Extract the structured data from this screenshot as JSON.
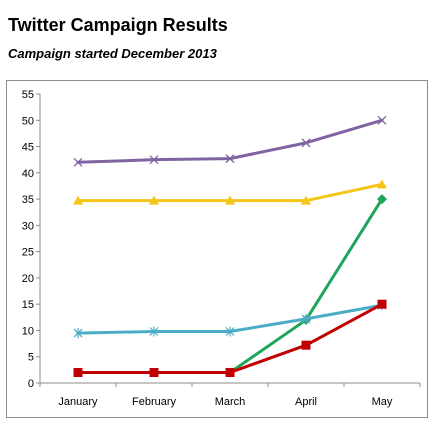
{
  "chart_data": {
    "type": "line",
    "title": "Twitter Campaign Results",
    "subtitle": "Campaign started December 2013",
    "categories": [
      "January",
      "February",
      "March",
      "April",
      "May"
    ],
    "ylim": [
      0,
      55
    ],
    "yticks": [
      0,
      5,
      10,
      15,
      20,
      25,
      30,
      35,
      40,
      45,
      50,
      55
    ],
    "grid": false,
    "legend": "none",
    "series": [
      {
        "values": [
          42,
          42.5,
          42.7,
          45.7,
          50
        ],
        "color": "#8064a2",
        "marker": "x"
      },
      {
        "values": [
          34.7,
          34.7,
          34.7,
          34.7,
          37.8
        ],
        "color": "#f5c518",
        "marker": "triangle"
      },
      {
        "values": [
          null,
          null,
          2,
          12,
          35
        ],
        "color": "#1fa55a",
        "marker": "diamond"
      },
      {
        "values": [
          9.5,
          9.8,
          9.8,
          12.2,
          14.8
        ],
        "color": "#4bacc6",
        "marker": "star"
      },
      {
        "values": [
          2,
          2,
          2,
          7.2,
          15
        ],
        "color": "#c00000",
        "marker": "square"
      }
    ]
  }
}
